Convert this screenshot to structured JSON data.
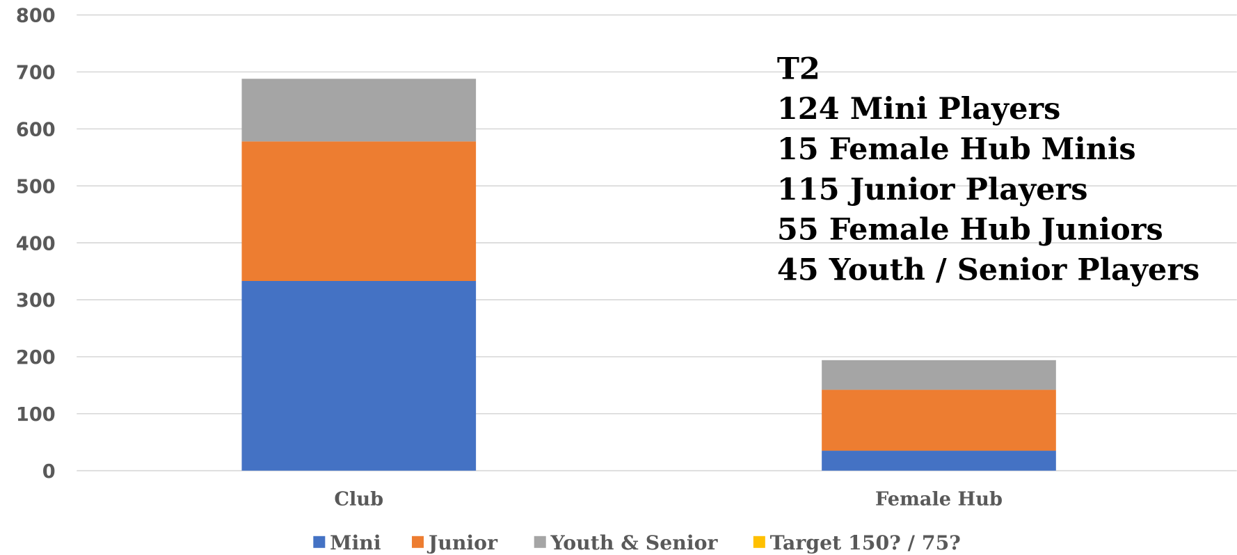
{
  "chart_data": {
    "type": "stacked_bar",
    "categories": [
      "Club",
      "Female Hub"
    ],
    "series": [
      {
        "name": "Mini",
        "color": "#4472c4",
        "values": [
          333,
          35
        ]
      },
      {
        "name": "Junior",
        "color": "#ed7d31",
        "values": [
          245,
          107
        ]
      },
      {
        "name": "Youth & Senior",
        "color": "#a5a5a5",
        "values": [
          110,
          52
        ]
      },
      {
        "name": "Target 150? / 75?",
        "color": "#ffc000",
        "values": [
          null,
          null
        ]
      }
    ],
    "ylim": [
      0,
      800
    ],
    "yticks": [
      0,
      100,
      200,
      300,
      400,
      500,
      600,
      700,
      800
    ],
    "grid": true,
    "legend": "bottom",
    "annotation": [
      "T2",
      "124 Mini Players",
      "15 Female Hub Minis",
      "115 Junior Players",
      "55 Female Hub Juniors",
      "45 Youth / Senior Players"
    ]
  }
}
